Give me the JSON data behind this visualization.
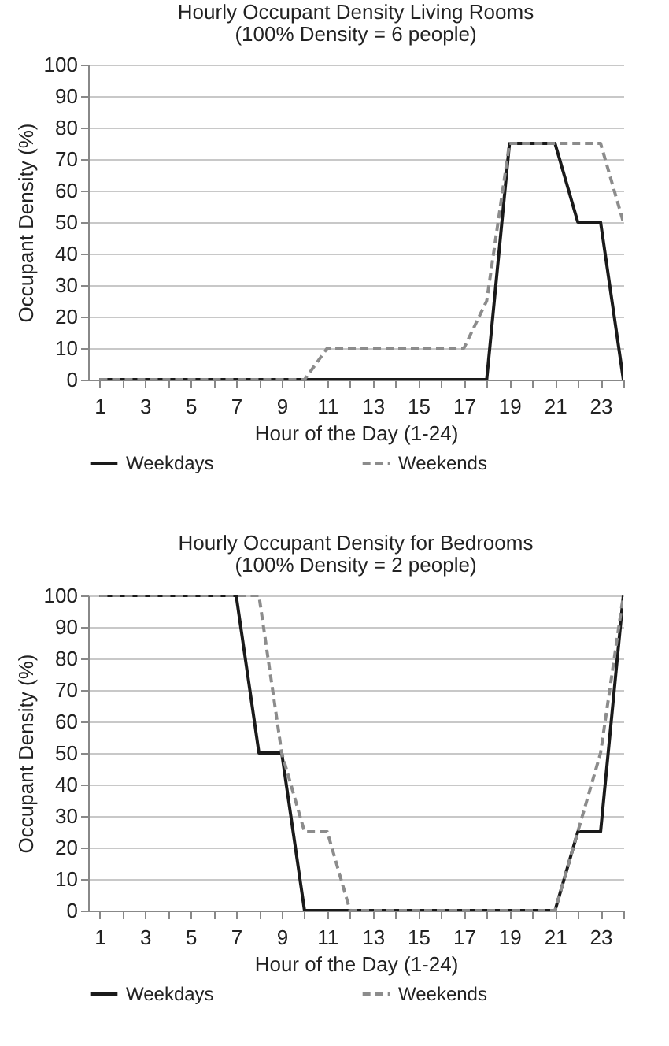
{
  "chart_data": [
    {
      "type": "line",
      "title": "Hourly Occupant Density Living Rooms",
      "subtitle": "(100% Density = 6 people)",
      "xlabel": "Hour of the Day (1-24)",
      "ylabel": "Occupant Density (%)",
      "x": [
        1,
        2,
        3,
        4,
        5,
        6,
        7,
        8,
        9,
        10,
        11,
        12,
        13,
        14,
        15,
        16,
        17,
        18,
        19,
        20,
        21,
        22,
        23,
        24
      ],
      "series": [
        {
          "name": "Weekdays",
          "color": "#1a1a1a",
          "line_style": "solid",
          "values": [
            0,
            0,
            0,
            0,
            0,
            0,
            0,
            0,
            0,
            0,
            0,
            0,
            0,
            0,
            0,
            0,
            0,
            0,
            75,
            75,
            75,
            50,
            50,
            0
          ]
        },
        {
          "name": "Weekends",
          "color": "#8c8c8c",
          "line_style": "dashed",
          "values": [
            0,
            0,
            0,
            0,
            0,
            0,
            0,
            0,
            0,
            0,
            10,
            10,
            10,
            10,
            10,
            10,
            10,
            25,
            75,
            75,
            75,
            75,
            75,
            50
          ]
        }
      ],
      "xlim": [
        0.5,
        24
      ],
      "xticks": [
        1,
        {
          "value": 2,
          "label": null
        },
        3,
        {
          "value": 4,
          "label": null
        },
        5,
        {
          "value": 6,
          "label": null
        },
        7,
        {
          "value": 8,
          "label": null
        },
        9,
        {
          "value": 10,
          "label": null
        },
        11,
        {
          "value": 12,
          "label": null
        },
        13,
        {
          "value": 14,
          "label": null
        },
        15,
        {
          "value": 16,
          "label": null
        },
        17,
        {
          "value": 18,
          "label": null
        },
        19,
        {
          "value": 20,
          "label": null
        },
        21,
        {
          "value": 22,
          "label": null
        },
        23,
        {
          "value": 24,
          "label": null
        }
      ],
      "ylim": [
        0,
        100
      ],
      "yticks": [
        0,
        10,
        20,
        30,
        40,
        50,
        60,
        70,
        80,
        90,
        100
      ],
      "grid": "y",
      "legend": "bottom",
      "marker": "none"
    },
    {
      "type": "line",
      "title": "Hourly Occupant Density for Bedrooms",
      "subtitle": "(100% Density = 2 people)",
      "xlabel": "Hour of the Day (1-24)",
      "ylabel": "Occupant Density (%)",
      "x": [
        1,
        2,
        3,
        4,
        5,
        6,
        7,
        8,
        9,
        10,
        11,
        12,
        13,
        14,
        15,
        16,
        17,
        18,
        19,
        20,
        21,
        22,
        23,
        24
      ],
      "series": [
        {
          "name": "Weekdays",
          "color": "#1a1a1a",
          "line_style": "solid",
          "values": [
            100,
            100,
            100,
            100,
            100,
            100,
            100,
            50,
            50,
            0,
            0,
            0,
            0,
            0,
            0,
            0,
            0,
            0,
            0,
            0,
            0,
            25,
            25,
            100
          ]
        },
        {
          "name": "Weekends",
          "color": "#8c8c8c",
          "line_style": "dashed",
          "values": [
            100,
            100,
            100,
            100,
            100,
            100,
            100,
            100,
            50,
            25,
            25,
            0,
            0,
            0,
            0,
            0,
            0,
            0,
            0,
            0,
            0,
            25,
            50,
            100
          ]
        }
      ],
      "xlim": [
        0.5,
        24
      ],
      "xticks": [
        1,
        {
          "value": 2,
          "label": null
        },
        3,
        {
          "value": 4,
          "label": null
        },
        5,
        {
          "value": 6,
          "label": null
        },
        7,
        {
          "value": 8,
          "label": null
        },
        9,
        {
          "value": 10,
          "label": null
        },
        11,
        {
          "value": 12,
          "label": null
        },
        13,
        {
          "value": 14,
          "label": null
        },
        15,
        {
          "value": 16,
          "label": null
        },
        17,
        {
          "value": 18,
          "label": null
        },
        19,
        {
          "value": 20,
          "label": null
        },
        21,
        {
          "value": 22,
          "label": null
        },
        23,
        {
          "value": 24,
          "label": null
        }
      ],
      "ylim": [
        0,
        100
      ],
      "yticks": [
        0,
        10,
        20,
        30,
        40,
        50,
        60,
        70,
        80,
        90,
        100
      ],
      "grid": "y",
      "legend": "bottom",
      "marker": "none"
    }
  ]
}
